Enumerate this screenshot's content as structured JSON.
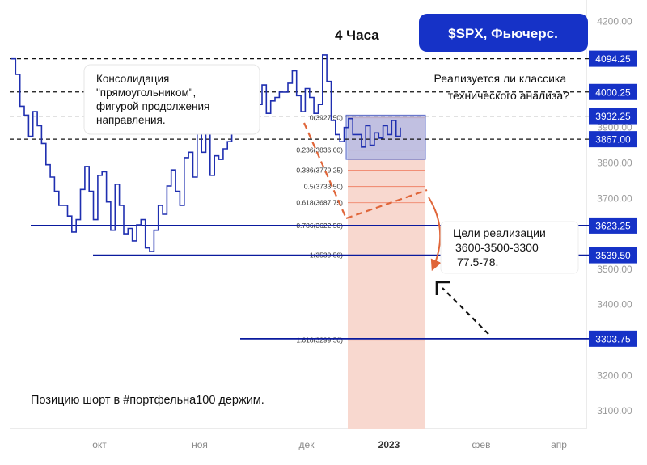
{
  "header": {
    "timeframe": "4 Часа",
    "ticker": "$SPX, Фьючерс."
  },
  "notes": {
    "consolidation": [
      "Консолидация",
      "\"прямоугольником\",",
      "фигурой продолжения",
      "направления."
    ],
    "question": [
      "Реализуется ли классика",
      "технического анализа?"
    ],
    "targets": [
      "Цели реализации",
      "3600-3500-3300",
      "77.5-78."
    ],
    "position": "Позицию шорт в #портфельна100 держим."
  },
  "colors": {
    "price": "#1f2fb0",
    "accent_blue": "#0a1a9e",
    "dashed": "#111111",
    "orange": "#e0663a",
    "fib_zone": "#f8d8cf",
    "rect_fill": "#aab6e8"
  },
  "chart_data": {
    "type": "line",
    "title": "$SPX, Фьючерс.",
    "timeframe": "4 Часа",
    "x_ticks": [
      "окт",
      "ноя",
      "дек",
      "2023",
      "фев",
      "апр"
    ],
    "y_ticks": [
      3100,
      3200,
      3300,
      3400,
      3500,
      3600,
      3700,
      3800,
      3900,
      4000,
      4100,
      4200
    ],
    "y_tick_labels": [
      "3100.00",
      "3200.00",
      "3300.00",
      "3400.00",
      "3500.00",
      "3600.00",
      "3700.00",
      "3800.00",
      "3900.00",
      "4000.00",
      "4100.00",
      "4200.00"
    ],
    "ylim": [
      3050,
      4260
    ],
    "series": [
      {
        "values": [
          4094,
          4050,
          3960,
          3935,
          3875,
          3945,
          3905,
          3855,
          3795,
          3760,
          3720,
          3680,
          3680,
          3650,
          3605,
          3640,
          3725,
          3790,
          3720,
          3640,
          3765,
          3775,
          3690,
          3610,
          3740,
          3680,
          3600,
          3615,
          3580,
          3625,
          3640,
          3560,
          3550,
          3610,
          3680,
          3655,
          3735,
          3780,
          3720,
          3680,
          3815,
          3830,
          3760,
          3885,
          3830,
          3905,
          3765,
          3820,
          3810,
          3840,
          3860,
          3935,
          4000,
          3975,
          3950,
          3985,
          3940,
          3965,
          4020,
          3940,
          3975,
          3985,
          4000,
          4000,
          4025,
          4060,
          3990,
          3945,
          4010,
          3985,
          3940,
          3965,
          4105,
          4030,
          3920,
          3880,
          3860,
          3900,
          3925,
          3880,
          3880,
          3845,
          3905,
          3850,
          3885,
          3870,
          3905,
          3880,
          3920,
          3875,
          3900
        ]
      }
    ],
    "levels": [
      {
        "value": 4094.25,
        "label": "4094.25",
        "style": "dashed"
      },
      {
        "value": 4000.25,
        "label": "4000.25",
        "style": "dashed"
      },
      {
        "value": 3932.25,
        "label": "3932.25",
        "style": "dashed"
      },
      {
        "value": 3867.0,
        "label": "3867.00",
        "style": "dashed"
      },
      {
        "value": 3623.25,
        "label": "3623.25",
        "style": "solid"
      },
      {
        "value": 3539.5,
        "label": "3539.50",
        "style": "solid"
      },
      {
        "value": 3303.75,
        "label": "3303.75",
        "style": "solid"
      }
    ],
    "fibonacci": [
      {
        "value": 3927.5,
        "label": "0(3927.50)"
      },
      {
        "value": 3836.0,
        "label": "0.236(3836.00)"
      },
      {
        "value": 3779.25,
        "label": "0.386(3779.25)"
      },
      {
        "value": 3733.5,
        "label": "0.5(3733.50)"
      },
      {
        "value": 3687.75,
        "label": "0.618(3687.75)"
      },
      {
        "value": 3622.5,
        "label": "0.786(3622.50)"
      },
      {
        "value": 3539.5,
        "label": "1(3539.50)"
      },
      {
        "value": 3299.5,
        "label": "1.618(3299.50)"
      }
    ],
    "consolidation_box": {
      "top": 3935,
      "bottom": 3810
    }
  }
}
